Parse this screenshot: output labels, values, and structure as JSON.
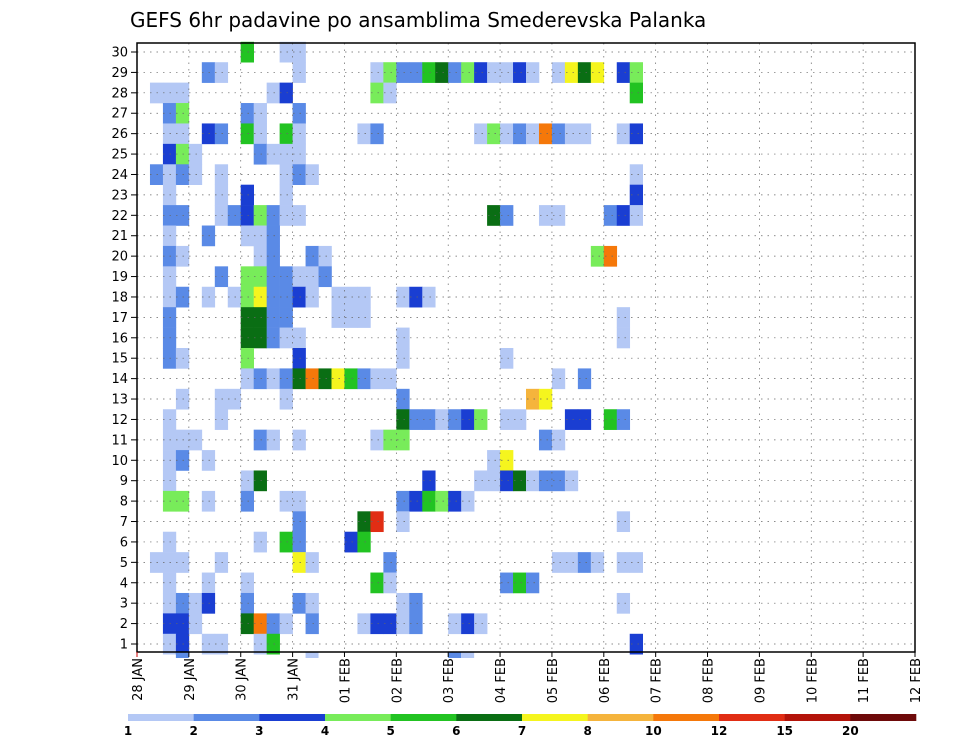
{
  "chart_data": {
    "type": "heatmap",
    "title": "GEFS 6hr padavine po ansamblima Smederevska Palanka",
    "xlabel": "",
    "ylabel": "",
    "x_tick_labels": [
      "28 JAN",
      "29 JAN",
      "30 JAN",
      "31 JAN",
      "01 FEB",
      "02 FEB",
      "03 FEB",
      "04 FEB",
      "05 FEB",
      "06 FEB",
      "07 FEB",
      "08 FEB",
      "09 FEB",
      "10 FEB",
      "11 FEB",
      "12 FEB"
    ],
    "y_tick_labels": [
      "1",
      "2",
      "3",
      "4",
      "5",
      "6",
      "7",
      "8",
      "9",
      "10",
      "11",
      "12",
      "13",
      "14",
      "15",
      "16",
      "17",
      "18",
      "19",
      "20",
      "21",
      "22",
      "23",
      "24",
      "25",
      "26",
      "27",
      "28",
      "29",
      "30"
    ],
    "x_unit": "6-hour step from 28 JAN 00Z",
    "grid": true,
    "legend": {
      "placement": "bottom",
      "labels": [
        "1",
        "2",
        "3",
        "4",
        "5",
        "6",
        "7",
        "8",
        "10",
        "12",
        "15",
        "20"
      ],
      "colors": [
        "#b4c8f5",
        "#5a8ae6",
        "#1a3ed2",
        "#78ec5a",
        "#22c322",
        "#0a6e14",
        "#f5f51e",
        "#f5b43c",
        "#f5780a",
        "#e12d14",
        "#b4140a",
        "#6e0a0a"
      ]
    },
    "cells": [
      [
        30,
        8,
        5
      ],
      [
        30,
        11,
        1
      ],
      [
        30,
        12,
        1
      ],
      [
        29,
        5,
        2
      ],
      [
        29,
        6,
        1
      ],
      [
        29,
        12,
        1
      ],
      [
        29,
        18,
        1
      ],
      [
        29,
        19,
        4
      ],
      [
        29,
        20,
        2
      ],
      [
        29,
        21,
        2
      ],
      [
        29,
        22,
        5
      ],
      [
        29,
        23,
        6
      ],
      [
        29,
        24,
        2
      ],
      [
        29,
        25,
        4
      ],
      [
        29,
        26,
        3
      ],
      [
        29,
        27,
        1
      ],
      [
        29,
        28,
        1
      ],
      [
        29,
        29,
        3
      ],
      [
        29,
        30,
        1
      ],
      [
        29,
        32,
        1
      ],
      [
        29,
        33,
        7
      ],
      [
        29,
        34,
        6
      ],
      [
        29,
        35,
        7
      ],
      [
        29,
        37,
        3
      ],
      [
        29,
        38,
        4
      ],
      [
        28,
        1,
        1
      ],
      [
        28,
        2,
        1
      ],
      [
        28,
        3,
        1
      ],
      [
        28,
        10,
        1
      ],
      [
        28,
        11,
        3
      ],
      [
        28,
        18,
        4
      ],
      [
        28,
        19,
        1
      ],
      [
        28,
        38,
        5
      ],
      [
        27,
        2,
        2
      ],
      [
        27,
        3,
        4
      ],
      [
        27,
        8,
        2
      ],
      [
        27,
        9,
        1
      ],
      [
        27,
        12,
        2
      ],
      [
        26,
        2,
        1
      ],
      [
        26,
        3,
        1
      ],
      [
        26,
        5,
        3
      ],
      [
        26,
        6,
        2
      ],
      [
        26,
        8,
        5
      ],
      [
        26,
        9,
        1
      ],
      [
        26,
        11,
        5
      ],
      [
        26,
        12,
        1
      ],
      [
        26,
        17,
        1
      ],
      [
        26,
        18,
        2
      ],
      [
        26,
        26,
        1
      ],
      [
        26,
        27,
        4
      ],
      [
        26,
        28,
        1
      ],
      [
        26,
        29,
        2
      ],
      [
        26,
        30,
        1
      ],
      [
        26,
        31,
        9
      ],
      [
        26,
        32,
        2
      ],
      [
        26,
        33,
        1
      ],
      [
        26,
        34,
        1
      ],
      [
        26,
        37,
        1
      ],
      [
        26,
        38,
        3
      ],
      [
        25,
        2,
        3
      ],
      [
        25,
        3,
        4
      ],
      [
        25,
        4,
        1
      ],
      [
        25,
        9,
        2
      ],
      [
        25,
        10,
        1
      ],
      [
        25,
        11,
        1
      ],
      [
        25,
        12,
        1
      ],
      [
        24,
        1,
        2
      ],
      [
        24,
        2,
        1
      ],
      [
        24,
        3,
        2
      ],
      [
        24,
        4,
        1
      ],
      [
        24,
        6,
        1
      ],
      [
        24,
        11,
        1
      ],
      [
        24,
        12,
        2
      ],
      [
        24,
        13,
        1
      ],
      [
        24,
        38,
        1
      ],
      [
        23,
        2,
        1
      ],
      [
        23,
        6,
        1
      ],
      [
        23,
        8,
        3
      ],
      [
        23,
        11,
        1
      ],
      [
        23,
        38,
        3
      ],
      [
        22,
        2,
        2
      ],
      [
        22,
        3,
        2
      ],
      [
        22,
        6,
        1
      ],
      [
        22,
        7,
        2
      ],
      [
        22,
        8,
        3
      ],
      [
        22,
        9,
        4
      ],
      [
        22,
        10,
        2
      ],
      [
        22,
        11,
        1
      ],
      [
        22,
        12,
        1
      ],
      [
        22,
        27,
        6
      ],
      [
        22,
        28,
        2
      ],
      [
        22,
        31,
        1
      ],
      [
        22,
        32,
        1
      ],
      [
        22,
        36,
        2
      ],
      [
        22,
        37,
        3
      ],
      [
        22,
        38,
        1
      ],
      [
        21,
        2,
        1
      ],
      [
        21,
        5,
        2
      ],
      [
        21,
        8,
        1
      ],
      [
        21,
        9,
        1
      ],
      [
        21,
        10,
        2
      ],
      [
        20,
        2,
        2
      ],
      [
        20,
        3,
        1
      ],
      [
        20,
        9,
        1
      ],
      [
        20,
        10,
        2
      ],
      [
        20,
        13,
        2
      ],
      [
        20,
        14,
        1
      ],
      [
        20,
        35,
        4
      ],
      [
        20,
        36,
        9
      ],
      [
        19,
        2,
        1
      ],
      [
        19,
        6,
        2
      ],
      [
        19,
        8,
        4
      ],
      [
        19,
        9,
        4
      ],
      [
        19,
        10,
        2
      ],
      [
        19,
        11,
        2
      ],
      [
        19,
        12,
        1
      ],
      [
        19,
        13,
        1
      ],
      [
        19,
        14,
        2
      ],
      [
        18,
        2,
        1
      ],
      [
        18,
        3,
        2
      ],
      [
        18,
        5,
        1
      ],
      [
        18,
        7,
        1
      ],
      [
        18,
        8,
        4
      ],
      [
        18,
        9,
        7
      ],
      [
        18,
        10,
        2
      ],
      [
        18,
        11,
        2
      ],
      [
        18,
        12,
        3
      ],
      [
        18,
        13,
        1
      ],
      [
        18,
        15,
        1
      ],
      [
        18,
        16,
        1
      ],
      [
        18,
        17,
        1
      ],
      [
        18,
        20,
        1
      ],
      [
        18,
        21,
        3
      ],
      [
        18,
        22,
        1
      ],
      [
        17,
        2,
        2
      ],
      [
        17,
        8,
        6
      ],
      [
        17,
        9,
        6
      ],
      [
        17,
        10,
        2
      ],
      [
        17,
        11,
        2
      ],
      [
        17,
        15,
        1
      ],
      [
        17,
        16,
        1
      ],
      [
        17,
        17,
        1
      ],
      [
        17,
        37,
        1
      ],
      [
        16,
        2,
        2
      ],
      [
        16,
        8,
        6
      ],
      [
        16,
        9,
        6
      ],
      [
        16,
        10,
        2
      ],
      [
        16,
        11,
        1
      ],
      [
        16,
        12,
        1
      ],
      [
        16,
        20,
        1
      ],
      [
        16,
        37,
        1
      ],
      [
        15,
        2,
        2
      ],
      [
        15,
        3,
        1
      ],
      [
        15,
        8,
        4
      ],
      [
        15,
        12,
        3
      ],
      [
        15,
        20,
        1
      ],
      [
        15,
        28,
        1
      ],
      [
        14,
        8,
        1
      ],
      [
        14,
        9,
        2
      ],
      [
        14,
        10,
        1
      ],
      [
        14,
        11,
        2
      ],
      [
        14,
        12,
        6
      ],
      [
        14,
        13,
        9
      ],
      [
        14,
        14,
        6
      ],
      [
        14,
        15,
        7
      ],
      [
        14,
        16,
        5
      ],
      [
        14,
        17,
        2
      ],
      [
        14,
        18,
        1
      ],
      [
        14,
        19,
        1
      ],
      [
        14,
        32,
        1
      ],
      [
        14,
        34,
        2
      ],
      [
        13,
        3,
        1
      ],
      [
        13,
        6,
        1
      ],
      [
        13,
        7,
        1
      ],
      [
        13,
        11,
        1
      ],
      [
        13,
        20,
        2
      ],
      [
        13,
        30,
        8
      ],
      [
        13,
        31,
        7
      ],
      [
        12,
        2,
        1
      ],
      [
        12,
        6,
        1
      ],
      [
        12,
        20,
        6
      ],
      [
        12,
        21,
        2
      ],
      [
        12,
        22,
        2
      ],
      [
        12,
        23,
        1
      ],
      [
        12,
        24,
        2
      ],
      [
        12,
        25,
        3
      ],
      [
        12,
        26,
        4
      ],
      [
        12,
        28,
        1
      ],
      [
        12,
        29,
        1
      ],
      [
        12,
        33,
        3
      ],
      [
        12,
        34,
        3
      ],
      [
        12,
        36,
        5
      ],
      [
        12,
        37,
        2
      ],
      [
        11,
        2,
        1
      ],
      [
        11,
        3,
        1
      ],
      [
        11,
        4,
        1
      ],
      [
        11,
        9,
        2
      ],
      [
        11,
        10,
        1
      ],
      [
        11,
        12,
        1
      ],
      [
        11,
        18,
        1
      ],
      [
        11,
        19,
        4
      ],
      [
        11,
        20,
        4
      ],
      [
        11,
        31,
        2
      ],
      [
        11,
        32,
        1
      ],
      [
        10,
        2,
        1
      ],
      [
        10,
        3,
        2
      ],
      [
        10,
        5,
        1
      ],
      [
        10,
        27,
        1
      ],
      [
        10,
        28,
        7
      ],
      [
        9,
        2,
        1
      ],
      [
        9,
        8,
        1
      ],
      [
        9,
        9,
        6
      ],
      [
        9,
        22,
        3
      ],
      [
        9,
        26,
        1
      ],
      [
        9,
        27,
        1
      ],
      [
        9,
        28,
        3
      ],
      [
        9,
        29,
        6
      ],
      [
        9,
        30,
        1
      ],
      [
        9,
        31,
        2
      ],
      [
        9,
        32,
        2
      ],
      [
        9,
        33,
        1
      ],
      [
        8,
        2,
        4
      ],
      [
        8,
        3,
        4
      ],
      [
        8,
        5,
        1
      ],
      [
        8,
        8,
        2
      ],
      [
        8,
        11,
        1
      ],
      [
        8,
        12,
        1
      ],
      [
        8,
        20,
        2
      ],
      [
        8,
        21,
        3
      ],
      [
        8,
        22,
        5
      ],
      [
        8,
        23,
        4
      ],
      [
        8,
        24,
        3
      ],
      [
        8,
        25,
        1
      ],
      [
        7,
        12,
        2
      ],
      [
        7,
        17,
        6
      ],
      [
        7,
        18,
        10
      ],
      [
        7,
        20,
        1
      ],
      [
        7,
        37,
        1
      ],
      [
        6,
        2,
        1
      ],
      [
        6,
        9,
        1
      ],
      [
        6,
        11,
        5
      ],
      [
        6,
        12,
        2
      ],
      [
        6,
        16,
        3
      ],
      [
        6,
        17,
        5
      ],
      [
        5,
        1,
        1
      ],
      [
        5,
        2,
        1
      ],
      [
        5,
        3,
        1
      ],
      [
        5,
        6,
        1
      ],
      [
        5,
        12,
        7
      ],
      [
        5,
        13,
        1
      ],
      [
        5,
        19,
        2
      ],
      [
        5,
        32,
        1
      ],
      [
        5,
        33,
        1
      ],
      [
        5,
        34,
        2
      ],
      [
        5,
        35,
        1
      ],
      [
        5,
        37,
        1
      ],
      [
        5,
        38,
        1
      ],
      [
        4,
        2,
        1
      ],
      [
        4,
        5,
        1
      ],
      [
        4,
        8,
        1
      ],
      [
        4,
        18,
        5
      ],
      [
        4,
        19,
        1
      ],
      [
        4,
        28,
        2
      ],
      [
        4,
        29,
        5
      ],
      [
        4,
        30,
        2
      ],
      [
        3,
        2,
        1
      ],
      [
        3,
        3,
        2
      ],
      [
        3,
        4,
        1
      ],
      [
        3,
        5,
        3
      ],
      [
        3,
        8,
        2
      ],
      [
        3,
        12,
        2
      ],
      [
        3,
        13,
        1
      ],
      [
        3,
        20,
        1
      ],
      [
        3,
        21,
        2
      ],
      [
        3,
        37,
        1
      ],
      [
        2,
        2,
        3
      ],
      [
        2,
        3,
        3
      ],
      [
        2,
        4,
        1
      ],
      [
        2,
        8,
        6
      ],
      [
        2,
        9,
        9
      ],
      [
        2,
        10,
        2
      ],
      [
        2,
        11,
        1
      ],
      [
        2,
        13,
        2
      ],
      [
        2,
        17,
        1
      ],
      [
        2,
        18,
        3
      ],
      [
        2,
        19,
        3
      ],
      [
        2,
        20,
        1
      ],
      [
        2,
        21,
        2
      ],
      [
        2,
        24,
        1
      ],
      [
        2,
        25,
        3
      ],
      [
        2,
        26,
        1
      ],
      [
        1,
        2,
        1
      ],
      [
        1,
        3,
        3
      ],
      [
        1,
        5,
        1
      ],
      [
        1,
        6,
        1
      ],
      [
        1,
        9,
        1
      ],
      [
        1,
        10,
        5
      ],
      [
        1,
        38,
        3
      ]
    ],
    "below_axis_cells": [
      [
        3,
        2
      ],
      [
        13,
        1
      ],
      [
        24,
        2
      ],
      [
        25,
        1
      ]
    ]
  }
}
